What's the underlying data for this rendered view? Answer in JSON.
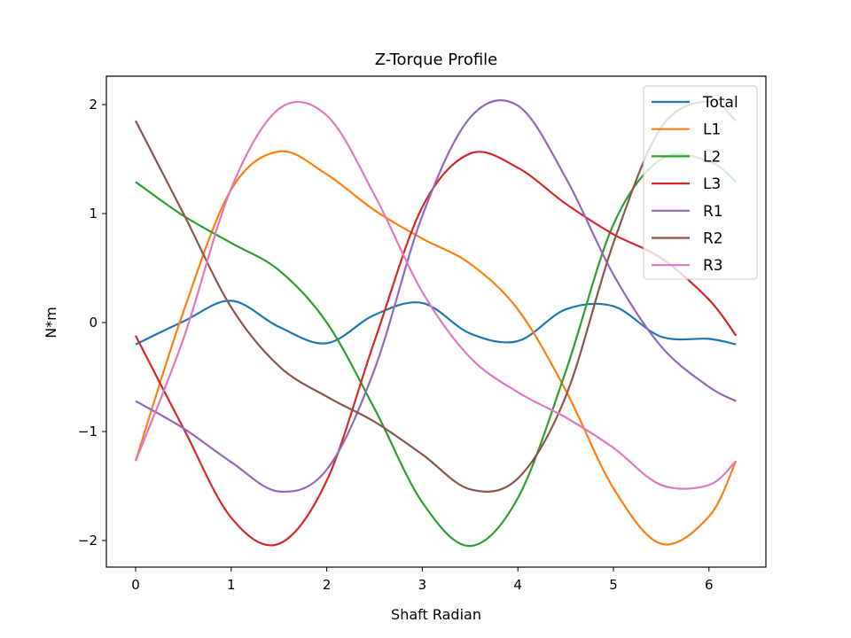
{
  "chart_data": {
    "type": "line",
    "title": "Z-Torque Profile",
    "xlabel": "Shaft Radian",
    "ylabel": "N*m",
    "xlim": [
      -0.31,
      6.6
    ],
    "ylim": [
      -2.25,
      2.25
    ],
    "xticks": [
      0,
      1,
      2,
      3,
      4,
      5,
      6
    ],
    "xtick_labels": [
      "0",
      "1",
      "2",
      "3",
      "4",
      "5",
      "6"
    ],
    "yticks": [
      -2,
      -1,
      0,
      1,
      2
    ],
    "ytick_labels": [
      "−2",
      "−1",
      "0",
      "1",
      "2"
    ],
    "grid": false,
    "legend_position": "upper right",
    "x": [
      0,
      0.5,
      1.0,
      1.5,
      2.0,
      2.5,
      3.0,
      3.5,
      4.0,
      4.5,
      5.0,
      5.5,
      6.0,
      6.283
    ],
    "series": [
      {
        "name": "Total",
        "color": "#1f77b4",
        "values": [
          -0.2,
          0.01,
          0.2,
          -0.04,
          -0.19,
          0.07,
          0.18,
          -0.1,
          -0.17,
          0.12,
          0.15,
          -0.13,
          -0.15,
          -0.2
        ]
      },
      {
        "name": "L1",
        "color": "#ff7f0e",
        "values": [
          -1.27,
          0.1,
          1.22,
          1.57,
          1.36,
          1.03,
          0.77,
          0.54,
          0.12,
          -0.62,
          -1.52,
          -2.03,
          -1.78,
          -1.27
        ]
      },
      {
        "name": "L2",
        "color": "#2ca02c",
        "values": [
          1.29,
          0.98,
          0.73,
          0.48,
          0.0,
          -0.79,
          -1.65,
          -2.05,
          -1.61,
          -0.45,
          0.9,
          1.5,
          1.48,
          1.29
        ]
      },
      {
        "name": "L3",
        "color": "#d62728",
        "values": [
          -0.12,
          -0.97,
          -1.79,
          -2.03,
          -1.45,
          -0.17,
          1.06,
          1.55,
          1.42,
          1.09,
          0.81,
          0.59,
          0.21,
          -0.12
        ]
      },
      {
        "name": "R1",
        "color": "#9467bd",
        "values": [
          -0.72,
          -0.97,
          -1.28,
          -1.55,
          -1.35,
          -0.43,
          0.98,
          1.88,
          1.99,
          1.33,
          0.44,
          -0.22,
          -0.59,
          -0.72
        ]
      },
      {
        "name": "R2",
        "color": "#8c564b",
        "values": [
          1.85,
          1.0,
          0.14,
          -0.4,
          -0.68,
          -0.91,
          -1.21,
          -1.53,
          -1.43,
          -0.68,
          0.73,
          1.79,
          2.03,
          1.85
        ]
      },
      {
        "name": "R3",
        "color": "#e377c2",
        "values": [
          -1.27,
          -0.15,
          1.23,
          1.96,
          1.9,
          1.17,
          0.28,
          -0.32,
          -0.64,
          -0.87,
          -1.15,
          -1.49,
          -1.49,
          -1.27
        ]
      }
    ]
  },
  "legend": {
    "items": [
      "Total",
      "L1",
      "L2",
      "L3",
      "R1",
      "R2",
      "R3"
    ]
  }
}
